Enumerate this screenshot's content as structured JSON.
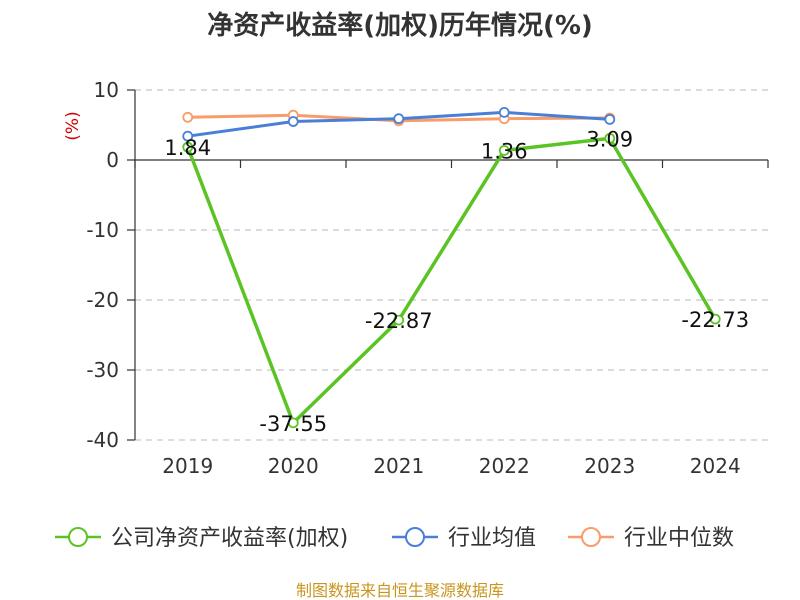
{
  "chart_data": {
    "type": "line",
    "title": "净资产收益率(加权)历年情况(%)",
    "ylabel": "(%)",
    "categories": [
      "2019",
      "2020",
      "2021",
      "2022",
      "2023",
      "2024"
    ],
    "ylim": [
      -40,
      10
    ],
    "yticks": [
      10,
      0,
      -10,
      -20,
      -30,
      -40
    ],
    "grid": true,
    "legend_position": "bottom",
    "series": [
      {
        "name": "公司净资产收益率(加权)",
        "color": "#5bc424",
        "values": [
          1.84,
          -37.55,
          -22.87,
          1.36,
          3.09,
          -22.73
        ],
        "labels": [
          "1.84",
          "-37.55",
          "-22.87",
          "1.36",
          "3.09",
          "-22.73"
        ]
      },
      {
        "name": "行业均值",
        "color": "#4a7fd6",
        "values": [
          3.4,
          5.5,
          5.9,
          6.8,
          5.8,
          null
        ]
      },
      {
        "name": "行业中位数",
        "color": "#f79c6a",
        "values": [
          6.1,
          6.4,
          5.6,
          5.9,
          6.0,
          null
        ]
      }
    ]
  },
  "footer": {
    "source": "制图数据来自恒生聚源数据库"
  }
}
